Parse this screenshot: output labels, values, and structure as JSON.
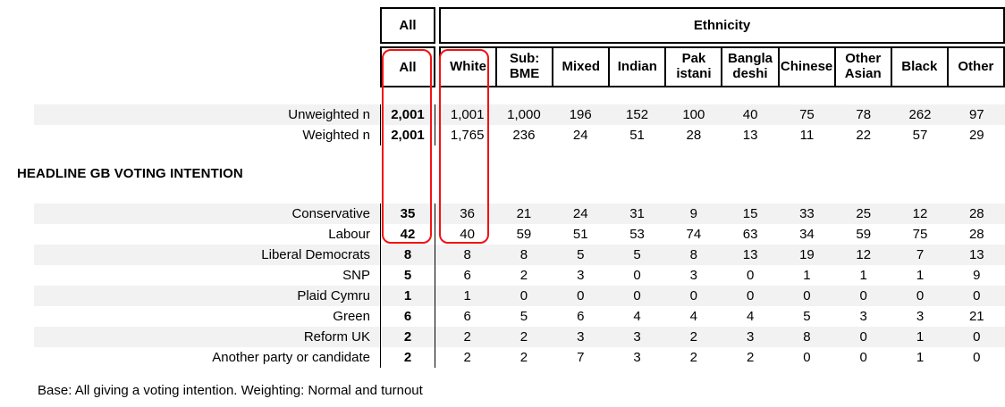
{
  "header": {
    "all_group_label": "All",
    "ethnicity_group_label": "Ethnicity",
    "all_col_label": "All",
    "ethnicity_columns": [
      "White",
      "Sub:\nBME",
      "Mixed",
      "Indian",
      "Pak\nistani",
      "Bangla\ndeshi",
      "Chinese",
      "Other\nAsian",
      "Black",
      "Other"
    ]
  },
  "rows": {
    "base": [
      {
        "label": "Unweighted n",
        "all": "2,001",
        "values": [
          "1,001",
          "1,000",
          "196",
          "152",
          "100",
          "40",
          "75",
          "78",
          "262",
          "97"
        ],
        "striped": true
      },
      {
        "label": "Weighted n",
        "all": "2,001",
        "values": [
          "1,765",
          "236",
          "24",
          "51",
          "28",
          "13",
          "11",
          "22",
          "57",
          "29"
        ],
        "striped": false
      }
    ],
    "section_title": "HEADLINE GB VOTING INTENTION",
    "voting": [
      {
        "label": "Conservative",
        "all": "35",
        "values": [
          "36",
          "21",
          "24",
          "31",
          "9",
          "15",
          "33",
          "25",
          "12",
          "28"
        ],
        "striped": true
      },
      {
        "label": "Labour",
        "all": "42",
        "values": [
          "40",
          "59",
          "51",
          "53",
          "74",
          "63",
          "34",
          "59",
          "75",
          "28"
        ],
        "striped": false
      },
      {
        "label": "Liberal Democrats",
        "all": "8",
        "values": [
          "8",
          "8",
          "5",
          "5",
          "8",
          "13",
          "19",
          "12",
          "7",
          "13"
        ],
        "striped": true
      },
      {
        "label": "SNP",
        "all": "5",
        "values": [
          "6",
          "2",
          "3",
          "0",
          "3",
          "0",
          "1",
          "1",
          "1",
          "9"
        ],
        "striped": false
      },
      {
        "label": "Plaid Cymru",
        "all": "1",
        "values": [
          "1",
          "0",
          "0",
          "0",
          "0",
          "0",
          "0",
          "0",
          "0",
          "0"
        ],
        "striped": true
      },
      {
        "label": "Green",
        "all": "6",
        "values": [
          "6",
          "5",
          "6",
          "4",
          "4",
          "4",
          "5",
          "3",
          "3",
          "21"
        ],
        "striped": false
      },
      {
        "label": "Reform UK",
        "all": "2",
        "values": [
          "2",
          "2",
          "3",
          "3",
          "2",
          "3",
          "8",
          "0",
          "1",
          "0"
        ],
        "striped": true
      },
      {
        "label": "Another party or candidate",
        "all": "2",
        "values": [
          "2",
          "2",
          "7",
          "3",
          "2",
          "2",
          "0",
          "0",
          "1",
          "0"
        ],
        "striped": false
      }
    ]
  },
  "footer": {
    "note": "Base: All giving a voting intention. Weighting: Normal and turnout"
  },
  "highlights": {
    "color": "#f31110",
    "items": [
      "all-column-highlight",
      "white-column-highlight"
    ]
  },
  "colors": {
    "stripe": "#f2f2f2",
    "border": "#000000",
    "background": "#ffffff"
  }
}
